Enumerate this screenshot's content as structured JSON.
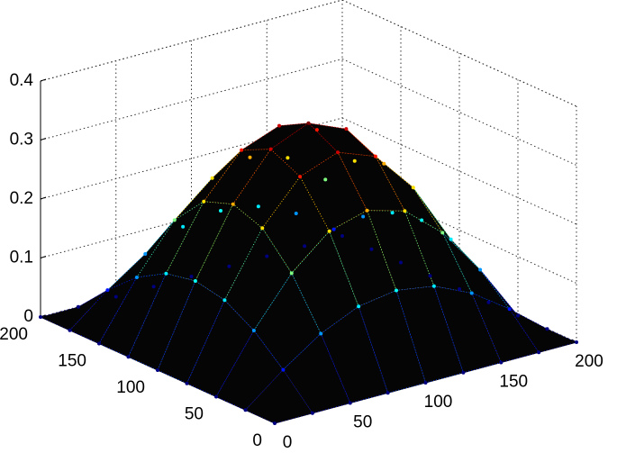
{
  "chart_data": {
    "type": "surface",
    "x": [
      0,
      25,
      50,
      75,
      100,
      125,
      150,
      175,
      200
    ],
    "y": [
      0,
      25,
      50,
      75,
      100,
      125,
      150,
      175,
      200
    ],
    "z": [
      [
        0,
        0,
        0,
        0,
        0,
        0,
        0,
        0,
        0
      ],
      [
        0,
        0.051,
        0.095,
        0.124,
        0.134,
        0.124,
        0.095,
        0.051,
        0
      ],
      [
        0,
        0.095,
        0.175,
        0.229,
        0.247,
        0.229,
        0.175,
        0.095,
        0
      ],
      [
        0,
        0.124,
        0.229,
        0.299,
        0.323,
        0.299,
        0.229,
        0.124,
        0
      ],
      [
        0,
        0.134,
        0.247,
        0.323,
        0.35,
        0.323,
        0.247,
        0.134,
        0
      ],
      [
        0,
        0.124,
        0.229,
        0.299,
        0.323,
        0.299,
        0.229,
        0.124,
        0
      ],
      [
        0,
        0.095,
        0.175,
        0.229,
        0.247,
        0.229,
        0.175,
        0.095,
        0
      ],
      [
        0,
        0.051,
        0.095,
        0.124,
        0.134,
        0.124,
        0.095,
        0.051,
        0
      ],
      [
        0,
        0,
        0,
        0,
        0,
        0,
        0,
        0,
        0
      ]
    ],
    "xlim": [
      0,
      200
    ],
    "ylim": [
      0,
      200
    ],
    "zlim": [
      0,
      0.4
    ],
    "xticks": [
      0,
      50,
      100,
      150,
      200
    ],
    "yticks": [
      0,
      50,
      100,
      150,
      200
    ],
    "zticks": [
      0,
      0.1,
      0.2,
      0.3,
      0.4
    ],
    "grid": true,
    "colormap": "jet"
  }
}
